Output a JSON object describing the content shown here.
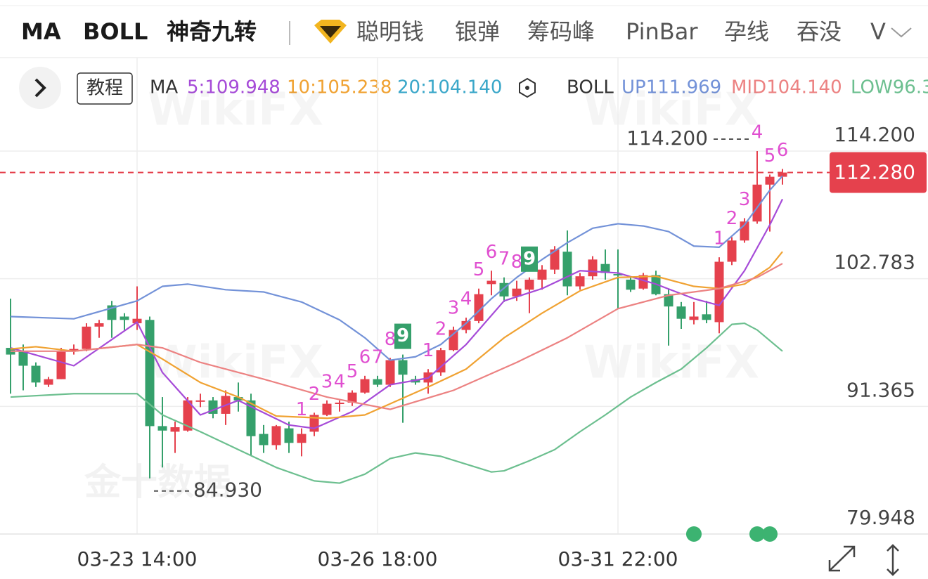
{
  "header": {
    "tabs_active": [
      "MA",
      "BOLL",
      "神奇九转"
    ],
    "tabs": [
      "聪明钱",
      "银弹",
      "筹码峰",
      "PinBar",
      "孕线",
      "吞没",
      "V"
    ]
  },
  "legend": {
    "tutorial": "教程",
    "ma_label": "MA",
    "ma_values": [
      "5:109.948",
      "10:105.238",
      "20:104.140"
    ],
    "boll_label": "BOLL",
    "boll_values": [
      "UP111.969",
      "MID104.140",
      "LOW96.3"
    ]
  },
  "watermarks": [
    "WikiFX",
    "金十数据"
  ],
  "chart_data": {
    "type": "candlestick",
    "categories": [
      null,
      null,
      null,
      null,
      null,
      null,
      null,
      null,
      null,
      null,
      "03-23 14:00",
      null,
      null,
      null,
      null,
      null,
      null,
      null,
      null,
      null,
      null,
      null,
      null,
      null,
      null,
      null,
      null,
      null,
      null,
      "03-26 18:00",
      null,
      null,
      null,
      null,
      null,
      null,
      null,
      null,
      null,
      null,
      null,
      null,
      null,
      null,
      null,
      null,
      null,
      null,
      "03-31 22:00",
      null,
      null,
      null,
      null,
      null,
      null,
      null,
      null,
      null,
      null,
      null,
      null,
      null
    ],
    "open": [
      96.6,
      96.3,
      95.0,
      93.3,
      93.8,
      96.3,
      96.5,
      98.5,
      100.4,
      99.4,
      98.8,
      99.1,
      89.6,
      89.1,
      89.2,
      91.8,
      91.9,
      90.7,
      92.2,
      91.9,
      88.9,
      87.9,
      89.4,
      88.1,
      89.1,
      90.6,
      91.6,
      91.7,
      92.6,
      93.8,
      93.3,
      95.5,
      93.8,
      93.5,
      94.4,
      96.4,
      98.2,
      99.0,
      102.3,
      102.4,
      101.2,
      101.8,
      102.7,
      103.6,
      105.2,
      102.1,
      103.0,
      104.1,
      103.2,
      102.7,
      101.9,
      103.1,
      101.4,
      100.3,
      99.1,
      99.6,
      98.9,
      104.3,
      106.2,
      107.9,
      111.2,
      111.9
    ],
    "high": [
      101.0,
      96.9,
      95.3,
      94.0,
      96.6,
      96.9,
      98.8,
      99.1,
      100.8,
      99.7,
      102.1,
      99.4,
      92.2,
      90.0,
      92.2,
      92.5,
      92.2,
      92.8,
      93.5,
      92.5,
      89.7,
      89.7,
      90.0,
      89.4,
      90.8,
      91.9,
      91.9,
      92.8,
      94.1,
      94.1,
      95.7,
      96.0,
      94.1,
      94.7,
      96.6,
      98.5,
      99.3,
      101.9,
      103.5,
      102.9,
      102.6,
      102.9,
      104.0,
      105.7,
      107.1,
      103.3,
      104.8,
      105.4,
      105.4,
      103.0,
      103.3,
      103.5,
      101.9,
      100.7,
      100.7,
      100.8,
      104.7,
      106.5,
      108.2,
      114.2,
      112.1,
      112.6
    ],
    "low": [
      92.5,
      92.8,
      93.1,
      93.1,
      93.8,
      96.0,
      96.3,
      97.5,
      97.5,
      98.2,
      98.2,
      84.93,
      85.9,
      87.2,
      89.1,
      91.3,
      90.3,
      89.7,
      90.9,
      87.0,
      87.2,
      87.5,
      87.2,
      86.9,
      88.7,
      90.5,
      90.9,
      91.4,
      92.5,
      93.1,
      93.1,
      89.9,
      93.3,
      92.5,
      94.1,
      96.3,
      97.9,
      98.8,
      101.3,
      100.7,
      100.8,
      99.7,
      101.8,
      103.2,
      101.3,
      101.8,
      102.7,
      102.7,
      100.1,
      101.6,
      101.8,
      101.3,
      96.8,
      98.3,
      98.7,
      98.8,
      97.9,
      104.0,
      106.0,
      107.7,
      107.0,
      111.2
    ],
    "close": [
      96.0,
      95.0,
      93.5,
      93.8,
      96.3,
      96.5,
      98.5,
      98.8,
      99.1,
      99.1,
      99.2,
      89.6,
      89.2,
      89.5,
      91.9,
      91.9,
      90.7,
      92.3,
      91.9,
      88.7,
      87.9,
      89.6,
      88.1,
      88.9,
      90.6,
      91.6,
      91.7,
      92.6,
      93.8,
      93.3,
      95.5,
      94.2,
      93.5,
      94.4,
      96.4,
      98.2,
      99.0,
      101.4,
      102.6,
      101.2,
      101.9,
      102.7,
      103.6,
      105.4,
      102.1,
      103.0,
      104.5,
      103.3,
      103.1,
      101.8,
      103.1,
      101.4,
      100.3,
      99.2,
      99.4,
      99.1,
      104.3,
      106.2,
      107.9,
      111.2,
      111.9,
      112.28
    ],
    "up_color": "#e5414d",
    "down_color": "#35a06b",
    "lines": [
      {
        "name": "MA5",
        "color": "#a64bd8",
        "x": [
          0,
          5,
          10,
          12,
          15,
          18,
          22,
          24,
          27,
          30,
          33,
          36,
          39,
          42,
          45,
          48,
          51,
          54,
          56,
          58,
          60,
          61
        ],
        "values": [
          96.6,
          95.0,
          98.9,
          94.4,
          90.6,
          91.9,
          89.7,
          89.4,
          90.9,
          93.3,
          93.9,
          96.9,
          100.8,
          101.9,
          103.5,
          103.3,
          102.3,
          101.0,
          100.4,
          103.5,
          107.6,
          109.9
        ]
      },
      {
        "name": "MA10",
        "color": "#f0a232",
        "x": [
          0,
          2,
          5,
          10,
          12,
          15,
          18,
          21,
          25,
          28,
          30,
          33,
          36,
          39,
          42,
          45,
          48,
          51,
          54,
          56,
          58,
          60,
          61
        ],
        "values": [
          96.5,
          96.7,
          96.3,
          96.9,
          95.6,
          93.5,
          92.2,
          90.5,
          90.3,
          90.6,
          91.6,
          93.1,
          94.7,
          97.5,
          99.7,
          101.7,
          102.9,
          103.0,
          102.1,
          101.9,
          102.3,
          103.8,
          105.2
        ]
      },
      {
        "name": "MID",
        "color": "#ec8282",
        "x": [
          0,
          5,
          10,
          12,
          15,
          20,
          25,
          30,
          35,
          40,
          44,
          48,
          52,
          56,
          59,
          61
        ],
        "values": [
          96.3,
          96.3,
          96.9,
          96.6,
          95.3,
          93.8,
          92.2,
          91.1,
          92.8,
          95.3,
          97.5,
          100.1,
          101.3,
          101.9,
          102.9,
          104.14
        ]
      },
      {
        "name": "UP",
        "color": "#7392d8",
        "x": [
          0,
          5,
          10,
          12,
          14,
          17,
          20,
          23,
          26,
          28,
          30,
          32,
          34,
          36,
          38,
          40,
          42,
          44,
          46,
          48,
          50,
          52,
          54,
          56,
          58,
          60,
          61
        ],
        "values": [
          99.4,
          99.2,
          100.8,
          102.1,
          102.3,
          101.8,
          101.6,
          100.7,
          99.1,
          97.5,
          95.5,
          95.8,
          96.9,
          98.8,
          101.0,
          102.9,
          104.5,
          106.0,
          107.3,
          107.7,
          107.5,
          107.0,
          105.7,
          105.6,
          107.6,
          110.7,
          111.97
        ]
      },
      {
        "name": "LOW",
        "color": "#6cbf8f",
        "x": [
          0,
          5,
          10,
          12,
          15,
          18,
          21,
          24,
          26,
          28,
          30,
          32,
          34,
          36,
          38,
          39,
          41,
          43,
          45,
          47,
          49,
          51,
          53,
          55,
          57,
          58,
          59,
          61
        ],
        "values": [
          92.2,
          92.5,
          92.5,
          90.6,
          89.1,
          87.5,
          85.9,
          84.7,
          84.5,
          85.3,
          86.7,
          87.2,
          86.9,
          86.2,
          85.5,
          85.6,
          86.5,
          87.5,
          89.1,
          90.6,
          92.2,
          93.5,
          94.7,
          96.6,
          98.7,
          98.8,
          98.2,
          96.3
        ]
      }
    ],
    "nine_turn": [
      {
        "index": 23,
        "label": "1"
      },
      {
        "index": 24,
        "label": "2"
      },
      {
        "index": 25,
        "label": "3"
      },
      {
        "index": 26,
        "label": "4"
      },
      {
        "index": 27,
        "label": "5"
      },
      {
        "index": 28,
        "label": "6"
      },
      {
        "index": 29,
        "label": "7"
      },
      {
        "index": 30,
        "label": "8"
      },
      {
        "index": 31,
        "label": "9"
      },
      {
        "index": 33,
        "label": "1"
      },
      {
        "index": 34,
        "label": "2"
      },
      {
        "index": 35,
        "label": "3"
      },
      {
        "index": 36,
        "label": "4"
      },
      {
        "index": 37,
        "label": "5"
      },
      {
        "index": 38,
        "label": "6"
      },
      {
        "index": 39,
        "label": "7"
      },
      {
        "index": 40,
        "label": "8"
      },
      {
        "index": 41,
        "label": "9"
      },
      {
        "index": 56,
        "label": "1"
      },
      {
        "index": 57,
        "label": "2"
      },
      {
        "index": 58,
        "label": "3"
      },
      {
        "index": 59,
        "label": "4"
      },
      {
        "index": 60,
        "label": "5"
      },
      {
        "index": 61,
        "label": "6"
      }
    ],
    "signals": [
      54,
      59,
      60
    ],
    "ylim": [
      79.948,
      114.2
    ],
    "yticks": [
      {
        "value": 114.2,
        "label": "114.200"
      },
      102.783,
      91.365,
      79.948
    ],
    "last_price": {
      "value": 112.28,
      "label": "112.280"
    },
    "high_marker": {
      "index": 59,
      "value": 114.2,
      "label": "114.200"
    },
    "low_marker": {
      "index": 11,
      "value": 84.93,
      "label": "84.930"
    },
    "grid": true
  }
}
